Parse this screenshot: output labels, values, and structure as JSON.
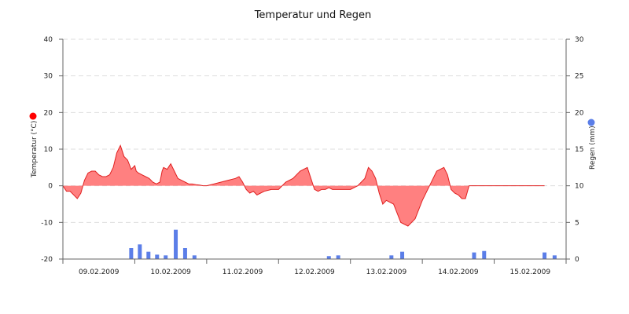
{
  "chart_data": {
    "type": "area",
    "title": "Temperatur und Regen",
    "y_left": {
      "label": "Temperatur (°C)",
      "ticks": [
        -20,
        -10,
        0,
        10,
        20,
        30,
        40
      ],
      "range": [
        -20,
        40
      ]
    },
    "y_right": {
      "label": "Regen (mm)",
      "ticks": [
        0,
        5,
        10,
        15,
        20,
        25,
        30
      ],
      "range": [
        0,
        30
      ]
    },
    "x_range_days": [
      0,
      7
    ],
    "x_tick_labels": [
      "09.02.2009",
      "10.02.2009",
      "11.02.2009",
      "12.02.2009",
      "13.02.2009",
      "14.02.2009",
      "15.02.2009"
    ],
    "grid": true,
    "colors": {
      "temperature": "#ff8080",
      "temperature_line": "#e02020",
      "rain": "#5b7ee8",
      "temperature_marker": "#ff0000",
      "rain_marker": "#5b7ee8"
    },
    "series": [
      {
        "name": "Temperatur (°C)",
        "type": "area",
        "x": [
          0.0,
          0.05,
          0.1,
          0.15,
          0.2,
          0.25,
          0.3,
          0.35,
          0.4,
          0.45,
          0.5,
          0.55,
          0.6,
          0.65,
          0.7,
          0.75,
          0.8,
          0.85,
          0.9,
          0.95,
          1.0,
          1.02,
          1.05,
          1.1,
          1.15,
          1.2,
          1.25,
          1.3,
          1.35,
          1.38,
          1.4,
          1.45,
          1.5,
          1.55,
          1.6,
          1.65,
          1.7,
          1.75,
          1.8,
          1.85,
          1.9,
          1.95,
          2.0,
          2.1,
          2.2,
          2.3,
          2.4,
          2.45,
          2.5,
          2.55,
          2.6,
          2.65,
          2.7,
          2.75,
          2.8,
          2.9,
          3.0,
          3.1,
          3.2,
          3.3,
          3.4,
          3.45,
          3.5,
          3.55,
          3.6,
          3.65,
          3.7,
          3.75,
          3.8,
          3.9,
          4.0,
          4.1,
          4.2,
          4.25,
          4.3,
          4.35,
          4.4,
          4.45,
          4.5,
          4.6,
          4.7,
          4.8,
          4.9,
          5.0,
          5.1,
          5.2,
          5.3,
          5.35,
          5.4,
          5.45,
          5.5,
          5.55,
          5.6,
          5.65,
          5.7,
          5.75,
          5.8,
          5.9,
          6.0,
          6.05,
          6.1,
          6.15,
          6.2,
          6.25,
          6.3,
          6.35,
          6.4,
          6.45,
          6.5,
          6.55,
          6.6,
          6.65,
          6.7
        ],
        "values": [
          0,
          -1.5,
          -1.5,
          -2.5,
          -3.5,
          -2,
          1.5,
          3.5,
          4,
          4,
          3,
          2.5,
          2.5,
          3,
          5,
          9,
          11,
          8,
          7,
          4.5,
          5.5,
          4,
          3.5,
          3,
          2.5,
          2,
          1,
          0.5,
          1,
          4,
          5,
          4.5,
          6,
          4,
          2,
          1.5,
          1,
          0.5,
          0.5,
          0.3,
          0.2,
          0,
          0,
          0.5,
          1,
          1.5,
          2,
          2.5,
          1,
          -1,
          -2,
          -1.5,
          -2.5,
          -2,
          -1.5,
          -1,
          -1,
          1,
          2,
          4,
          5,
          2,
          -1,
          -1.5,
          -1,
          -1,
          -0.5,
          -1,
          -1,
          -1,
          -1,
          0,
          2,
          5,
          4,
          2,
          -2,
          -5,
          -4,
          -5,
          -10,
          -11,
          -9,
          -4,
          0,
          4,
          5,
          3,
          -1,
          -2,
          -2.5,
          -3.5,
          -3.5,
          0,
          0,
          0,
          0,
          0,
          0,
          0,
          0,
          0,
          0,
          0,
          0,
          0,
          0,
          0,
          0,
          0,
          0,
          0,
          0
        ]
      },
      {
        "name": "Regen (mm)",
        "type": "bar",
        "x": [
          0.95,
          1.07,
          1.19,
          1.31,
          1.43,
          1.57,
          1.7,
          1.83,
          3.7,
          3.83,
          4.57,
          4.72,
          5.72,
          5.86,
          6.7,
          6.84
        ],
        "values": [
          1.5,
          2,
          1,
          0.6,
          0.5,
          4,
          1.5,
          0.5,
          0.4,
          0.5,
          0.5,
          1,
          0.9,
          1.1,
          0.9,
          0.5
        ]
      }
    ]
  }
}
